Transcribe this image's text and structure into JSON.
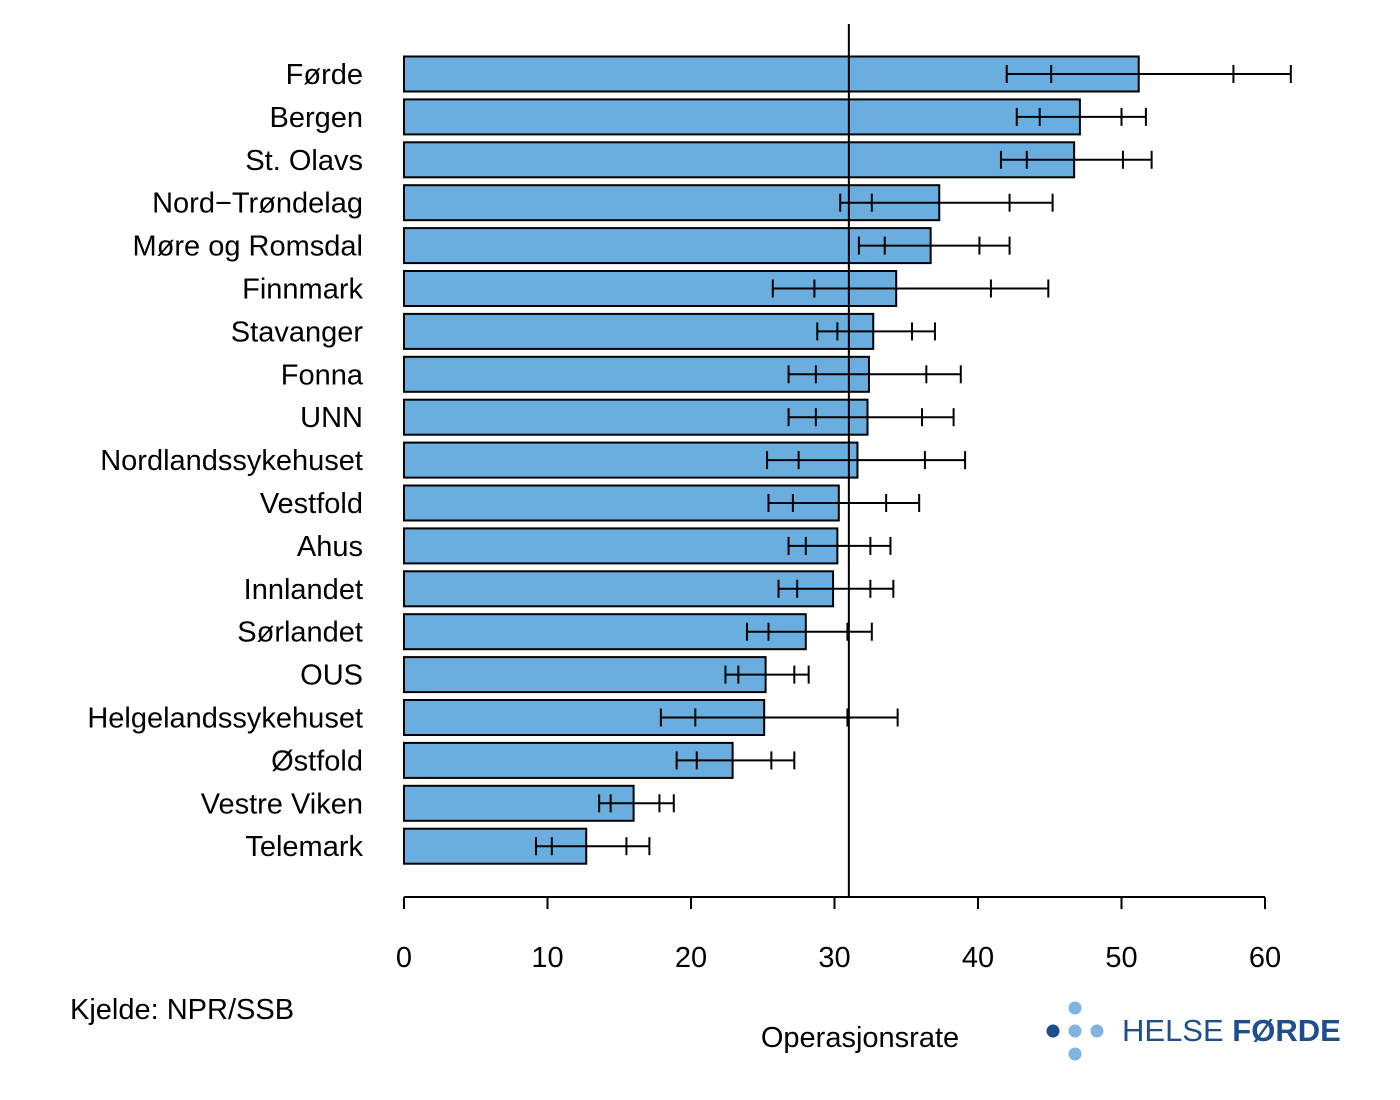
{
  "chart_data": {
    "type": "bar",
    "orientation": "horizontal",
    "categories": [
      "Førde",
      "Bergen",
      "St. Olavs",
      "Nord−Trøndelag",
      "Møre og Romsdal",
      "Finnmark",
      "Stavanger",
      "Fonna",
      "UNN",
      "Nordlandssykehuset",
      "Vestfold",
      "Ahus",
      "Innlandet",
      "Sørlandet",
      "OUS",
      "Helgelandssykehuset",
      "Østfold",
      "Vestre Viken",
      "Telemark"
    ],
    "values": [
      51.2,
      47.1,
      46.7,
      37.3,
      36.7,
      34.3,
      32.7,
      32.4,
      32.3,
      31.6,
      30.3,
      30.2,
      29.9,
      28.0,
      25.2,
      25.1,
      22.9,
      16.0,
      12.7
    ],
    "inner_interval": [
      [
        45.1,
        57.8
      ],
      [
        44.3,
        50.0
      ],
      [
        43.4,
        50.1
      ],
      [
        32.6,
        42.2
      ],
      [
        33.5,
        40.1
      ],
      [
        28.6,
        40.9
      ],
      [
        30.2,
        35.4
      ],
      [
        28.7,
        36.4
      ],
      [
        28.7,
        36.1
      ],
      [
        27.5,
        36.3
      ],
      [
        27.1,
        33.6
      ],
      [
        28.0,
        32.5
      ],
      [
        27.4,
        32.5
      ],
      [
        25.4,
        30.9
      ],
      [
        23.3,
        27.2
      ],
      [
        20.3,
        30.9
      ],
      [
        20.4,
        25.6
      ],
      [
        14.4,
        17.8
      ],
      [
        10.3,
        15.5
      ]
    ],
    "outer_interval": [
      [
        42.0,
        61.8
      ],
      [
        42.7,
        51.7
      ],
      [
        41.6,
        52.1
      ],
      [
        30.4,
        45.2
      ],
      [
        31.7,
        42.2
      ],
      [
        25.7,
        44.9
      ],
      [
        28.8,
        37.0
      ],
      [
        26.8,
        38.8
      ],
      [
        26.8,
        38.3
      ],
      [
        25.3,
        39.1
      ],
      [
        25.4,
        35.9
      ],
      [
        26.8,
        33.9
      ],
      [
        26.1,
        34.1
      ],
      [
        23.9,
        32.6
      ],
      [
        22.4,
        28.2
      ],
      [
        17.9,
        34.4
      ],
      [
        19.0,
        27.2
      ],
      [
        13.6,
        18.8
      ],
      [
        9.2,
        17.1
      ]
    ],
    "reference_line": 31.0,
    "xlim": [
      0,
      60
    ],
    "xticks": [
      "0",
      "10",
      "20",
      "30",
      "40",
      "50",
      "60"
    ],
    "xlabel": "Operasjonsrate",
    "bar_color": "#6aaee0",
    "bar_edge_color": "#000000"
  },
  "source_note": "Kjelde: NPR/SSB",
  "logo": {
    "text_light": "HELSE ",
    "text_bold": "FØRDE",
    "icon": "dots-cross-icon",
    "color_dark": "#1f4e8c",
    "color_light": "#7fb3e0"
  }
}
